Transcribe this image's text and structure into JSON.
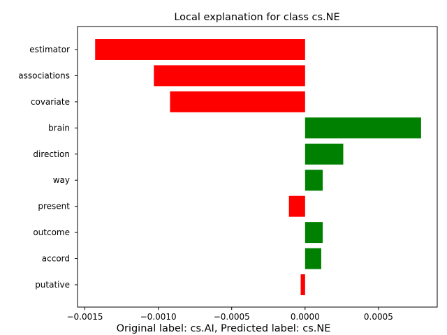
{
  "chart_data": {
    "type": "bar",
    "orientation": "horizontal",
    "title": "Local explanation for class cs.NE",
    "caption": "Original label: cs.AI, Predicted label: cs.NE",
    "xlabel": "",
    "ylabel": "",
    "xlim": [
      -0.00155,
      0.0009
    ],
    "xticks": [
      -0.0015,
      -0.001,
      -0.0005,
      0.0,
      0.0005
    ],
    "xtick_labels": [
      "−0.0015",
      "−0.0010",
      "−0.0005",
      "0.0000",
      "0.0005"
    ],
    "grid": false,
    "legend": "none",
    "categories": [
      "estimator",
      "associations",
      "covariate",
      "brain",
      "direction",
      "way",
      "present",
      "outcome",
      "accord",
      "putative"
    ],
    "values": [
      -0.00143,
      -0.00103,
      -0.00092,
      0.00079,
      0.00026,
      0.00012,
      -0.00011,
      0.00012,
      0.00011,
      -3e-05
    ],
    "colors": {
      "positive": "#008000",
      "negative": "#ff0000",
      "axis": "#000000"
    }
  }
}
